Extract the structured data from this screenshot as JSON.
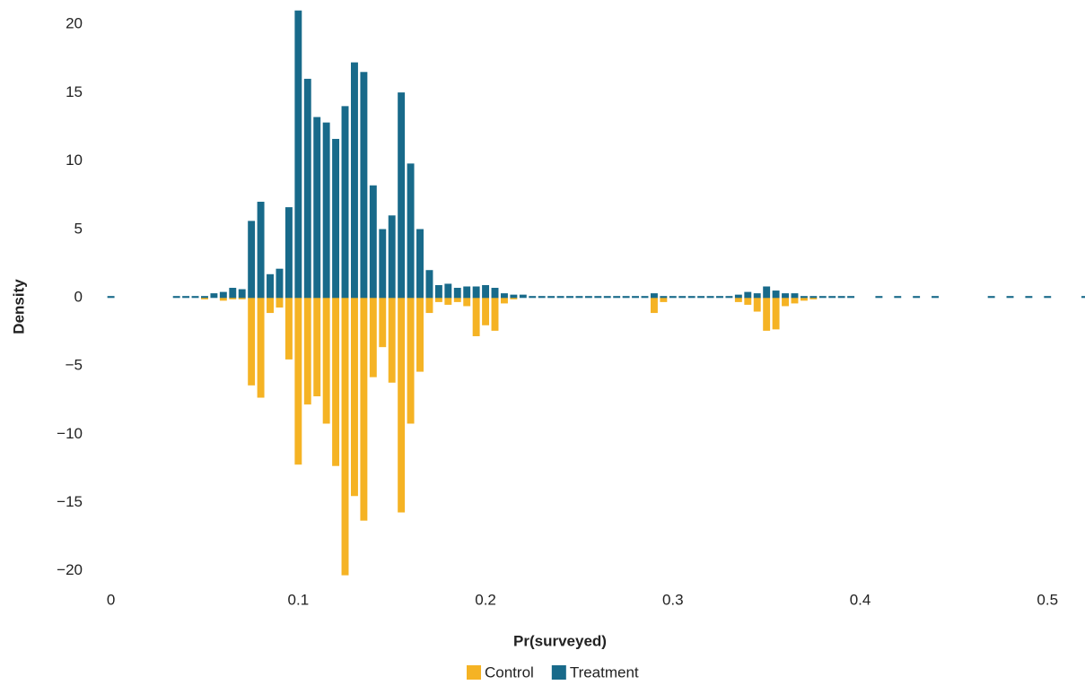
{
  "chart_data": {
    "type": "histogram",
    "x_label": "Pr(surveyed)",
    "y_label": "Density",
    "bins": [
      -0.0025,
      0.0025,
      0.0075,
      0.0125,
      0.0175,
      0.0225,
      0.0275,
      0.0325,
      0.0375,
      0.0425,
      0.0475,
      0.0525,
      0.0575,
      0.0625,
      0.0675,
      0.0725,
      0.0775,
      0.0825,
      0.0875,
      0.0925,
      0.0975,
      0.1025,
      0.1075,
      0.1125,
      0.1175,
      0.1225,
      0.1275,
      0.1325,
      0.1375,
      0.1425,
      0.1475,
      0.1525,
      0.1575,
      0.1625,
      0.1675,
      0.1725,
      0.1775,
      0.1825,
      0.1875,
      0.1925,
      0.1975,
      0.2025,
      0.2075,
      0.2125,
      0.2175,
      0.2225,
      0.2275,
      0.2325,
      0.2375,
      0.2425,
      0.2475,
      0.2525,
      0.2575,
      0.2625,
      0.2675,
      0.2725,
      0.2775,
      0.2825,
      0.2875,
      0.2925,
      0.2975,
      0.3025,
      0.3075,
      0.3125,
      0.3175,
      0.3225,
      0.3275,
      0.3325,
      0.3375,
      0.3425,
      0.3475,
      0.3525,
      0.3575,
      0.3625,
      0.3675,
      0.3725,
      0.3775,
      0.3825,
      0.3875,
      0.3925,
      0.3975,
      0.4025,
      0.4075,
      0.4125,
      0.4175,
      0.4225,
      0.4275,
      0.4325,
      0.4375,
      0.4425,
      0.4475,
      0.4525,
      0.4575,
      0.4625,
      0.4675,
      0.4725,
      0.4775,
      0.4825,
      0.4875,
      0.4925,
      0.4975,
      0.5025,
      0.5075,
      0.5125,
      0.5175,
      0.5225
    ],
    "series": [
      {
        "name": "Control",
        "color": "#f5b324",
        "values": [
          0,
          0,
          0,
          0,
          0,
          0,
          0,
          0,
          0,
          0,
          -0.1,
          0,
          -0.2,
          -0.1,
          -0.1,
          -6.4,
          -7.3,
          -1.1,
          -0.7,
          -4.5,
          -12.2,
          -7.8,
          -7.2,
          -9.2,
          -12.3,
          -20.3,
          -14.5,
          -16.3,
          -5.8,
          -3.6,
          -6.2,
          -15.7,
          -9.2,
          -5.4,
          -1.1,
          -0.3,
          -0.5,
          -0.3,
          -0.6,
          -2.8,
          -2.0,
          -2.4,
          -0.4,
          -0.1,
          0,
          0,
          0,
          0,
          0,
          0,
          0,
          0,
          0,
          0,
          0,
          0,
          0,
          0,
          -1.1,
          -0.3,
          0,
          0,
          0,
          0,
          0,
          0,
          0,
          -0.3,
          -0.5,
          -1.0,
          -2.4,
          -2.3,
          -0.6,
          -0.4,
          -0.2,
          -0.1,
          0,
          0,
          0,
          0,
          0,
          0,
          0,
          0,
          0,
          0,
          0,
          0,
          0,
          0,
          0,
          0,
          0,
          0,
          0,
          0,
          0,
          0,
          0,
          0,
          0,
          0,
          0,
          0,
          0
        ]
      },
      {
        "name": "Treatment",
        "color": "#186a8a",
        "values": [
          0.1,
          0,
          0,
          0,
          0,
          0,
          0,
          0.1,
          0.1,
          0.1,
          0.1,
          0.3,
          0.4,
          0.7,
          0.6,
          5.6,
          7.0,
          1.7,
          2.1,
          6.6,
          21.0,
          16.0,
          13.2,
          12.8,
          11.6,
          14.0,
          17.2,
          16.5,
          8.2,
          5.0,
          6.0,
          15.0,
          9.8,
          5.0,
          2.0,
          0.9,
          1.0,
          0.7,
          0.8,
          0.8,
          0.9,
          0.7,
          0.3,
          0.2,
          0.2,
          0.1,
          0.1,
          0.1,
          0.1,
          0.1,
          0.1,
          0.1,
          0.1,
          0.1,
          0.1,
          0.1,
          0.1,
          0.1,
          0.3,
          0.1,
          0.1,
          0.1,
          0.1,
          0.1,
          0.1,
          0.1,
          0.1,
          0.2,
          0.4,
          0.3,
          0.8,
          0.5,
          0.3,
          0.3,
          0.1,
          0.1,
          0.1,
          0.1,
          0.1,
          0.1,
          0,
          0,
          0.1,
          0,
          0.1,
          0,
          0.1,
          0,
          0.1,
          0,
          0,
          0,
          0,
          0,
          0.1,
          0,
          0.1,
          0,
          0.1,
          0,
          0.1,
          0,
          0,
          0,
          0.1
        ]
      }
    ],
    "xlim": [
      -0.007,
      0.52
    ],
    "xticks": [
      0,
      0.1,
      0.2,
      0.3,
      0.4,
      0.5
    ],
    "ylim": [
      -21,
      21
    ],
    "yticks": [
      {
        "value": -20,
        "label": "−20"
      },
      {
        "value": -15,
        "label": "−15"
      },
      {
        "value": -10,
        "label": "−10"
      },
      {
        "value": -5,
        "label": "−5"
      },
      0,
      5,
      10,
      15,
      20
    ],
    "grid": false,
    "legend": "bottom"
  }
}
